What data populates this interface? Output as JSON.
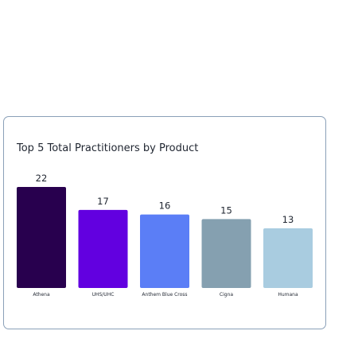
{
  "chart_data": {
    "type": "bar",
    "title": "Top 5 Total Practitioners by Product",
    "categories": [
      "Athena",
      "UHS/UHC",
      "Anthem Blue Cross",
      "Cigna",
      "Humana"
    ],
    "values": [
      22,
      17,
      16,
      15,
      13
    ],
    "bar_colors": [
      "#28004e",
      "#6200e0",
      "#5b7ef6",
      "#85a0b0",
      "#a9cce0"
    ],
    "ylim": [
      0,
      22
    ],
    "xlabel": "",
    "ylabel": "",
    "grid": false,
    "legend": "none",
    "data_labels": true
  }
}
